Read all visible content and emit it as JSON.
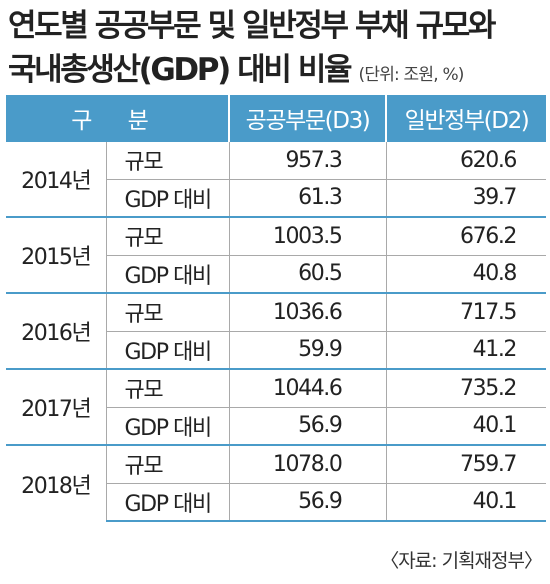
{
  "title": {
    "line1": "연도별 공공부문 및 일반정부 부채 규모와",
    "line2": "국내총생산(GDP) 대비 비율",
    "unit": "(단위: 조원, %)"
  },
  "table": {
    "headers": [
      "구 분",
      "공공부문(D3)",
      "일반정부(D2)"
    ],
    "rows": [
      {
        "year": "2014년",
        "items": [
          {
            "label": "규모",
            "public": "957.3",
            "general": "620.6"
          },
          {
            "label": "GDP 대비",
            "public": "61.3",
            "general": "39.7"
          }
        ]
      },
      {
        "year": "2015년",
        "items": [
          {
            "label": "규모",
            "public": "1003.5",
            "general": "676.2"
          },
          {
            "label": "GDP 대비",
            "public": "60.5",
            "general": "40.8"
          }
        ]
      },
      {
        "year": "2016년",
        "items": [
          {
            "label": "규모",
            "public": "1036.6",
            "general": "717.5"
          },
          {
            "label": "GDP 대비",
            "public": "59.9",
            "general": "41.2"
          }
        ]
      },
      {
        "year": "2017년",
        "items": [
          {
            "label": "규모",
            "public": "1044.6",
            "general": "735.2"
          },
          {
            "label": "GDP 대비",
            "public": "56.9",
            "general": "40.1"
          }
        ]
      },
      {
        "year": "2018년",
        "items": [
          {
            "label": "규모",
            "public": "1078.0",
            "general": "759.7"
          },
          {
            "label": "GDP 대비",
            "public": "56.9",
            "general": "40.1"
          }
        ]
      }
    ]
  },
  "source": "〈자료: 기획재정부〉",
  "colors": {
    "header_bg": "#4a9bc9",
    "rule": "#4a9bc9",
    "text": "#222222"
  }
}
